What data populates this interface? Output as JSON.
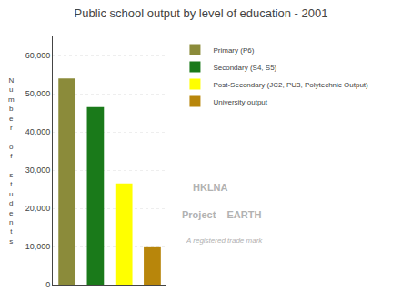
{
  "chart_data": {
    "type": "bar",
    "title": "Public school output by level of education - 2001",
    "y_label": "Number of students",
    "categories": [
      "Primary (P6)",
      "Secondary (S4, S5)",
      "Post-Secondary (JC2, PU3, Polytechnic Output)",
      "University output"
    ],
    "values": [
      54000,
      46500,
      26500,
      9800
    ],
    "colors": [
      "#8B8B3A",
      "#1A7A1A",
      "#FFFF00",
      "#B8860B"
    ],
    "ylim": [
      0,
      65000
    ],
    "yticks": [
      0,
      {
        "value": 10000,
        "label": "10,000"
      },
      {
        "value": 20000,
        "label": "20,000"
      },
      {
        "value": 30000,
        "label": "30,000"
      },
      {
        "value": 40000,
        "label": "40,000"
      },
      {
        "value": 50000,
        "label": "50,000"
      },
      {
        "value": 60000,
        "label": "60,000"
      }
    ],
    "grid": true,
    "legend": "upper right",
    "tick_labels": "y",
    "annotations": [
      "HKLNA",
      "Project    EARTH",
      "A registered trade mark"
    ]
  }
}
